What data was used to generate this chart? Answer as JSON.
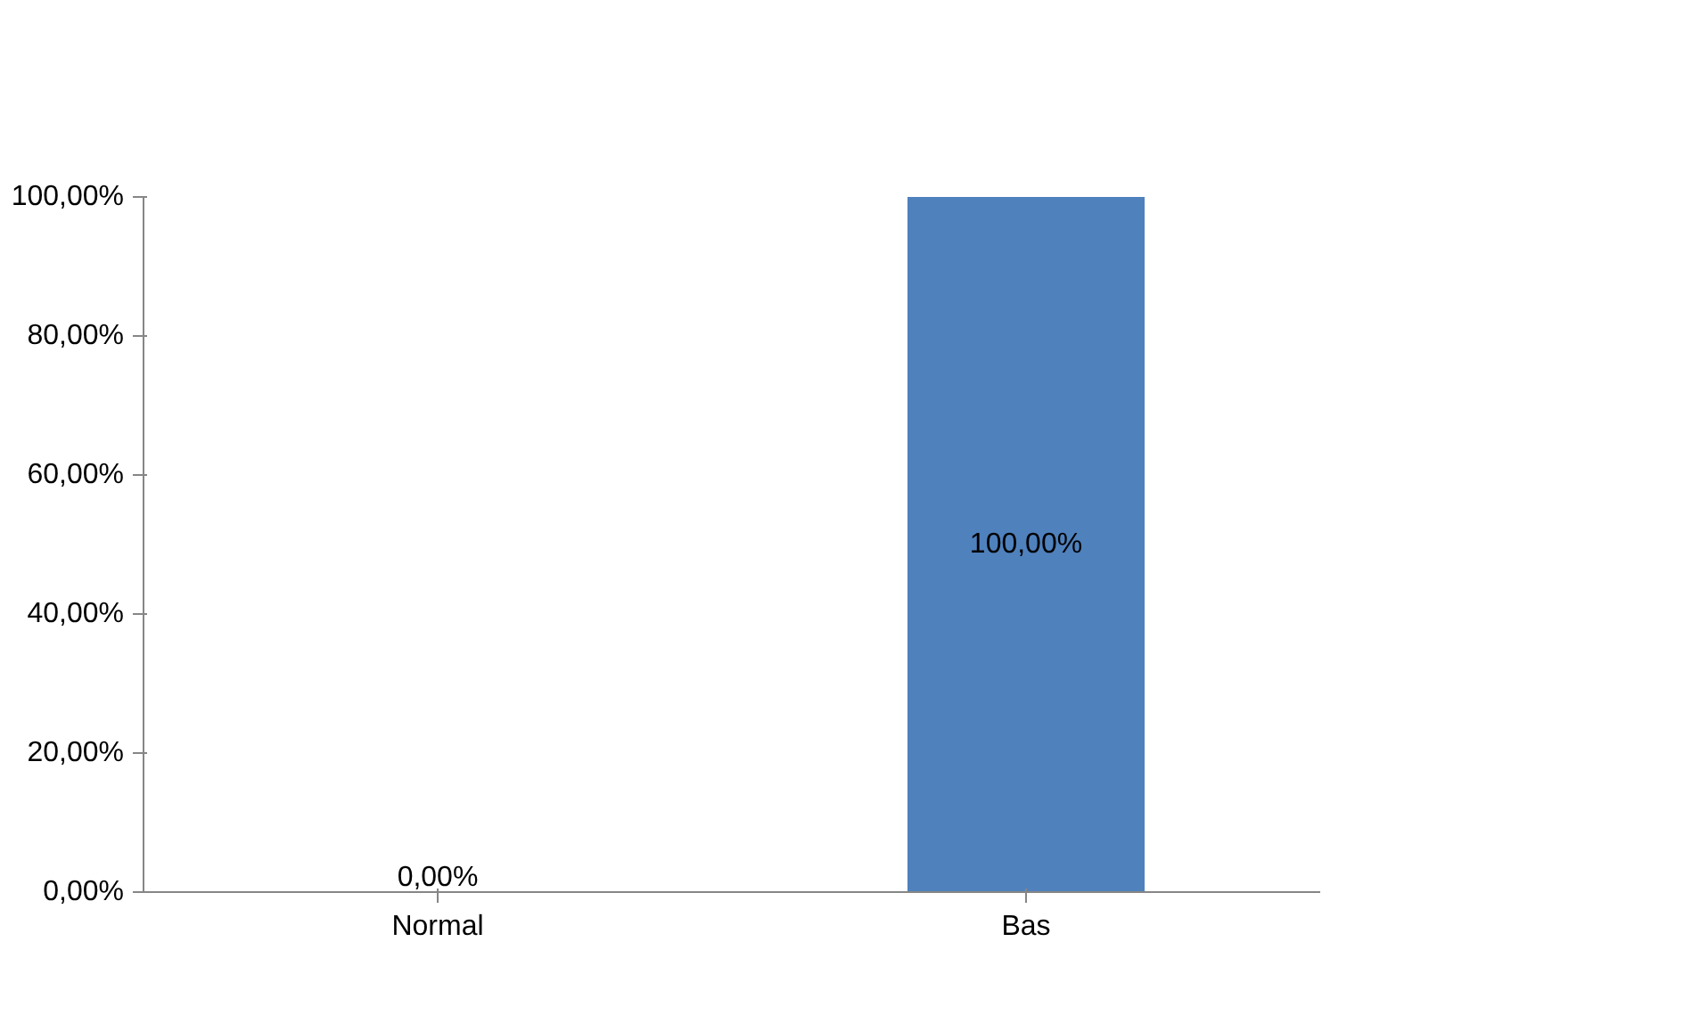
{
  "chart_data": {
    "type": "bar",
    "categories": [
      "Normal",
      "Bas"
    ],
    "values": [
      0,
      100
    ],
    "color": "#4f81bd",
    "value_labels": [
      "0,00%",
      "100,00%"
    ],
    "ylim": [
      0,
      100
    ],
    "yticks": [
      {
        "value": 0,
        "label": "0,00%"
      },
      {
        "value": 20,
        "label": "20,00%"
      },
      {
        "value": 40,
        "label": "40,00%"
      },
      {
        "value": 60,
        "label": "60,00%"
      },
      {
        "value": 80,
        "label": "80,00%"
      },
      {
        "value": 100,
        "label": "100,00%"
      }
    ],
    "grid": false
  }
}
